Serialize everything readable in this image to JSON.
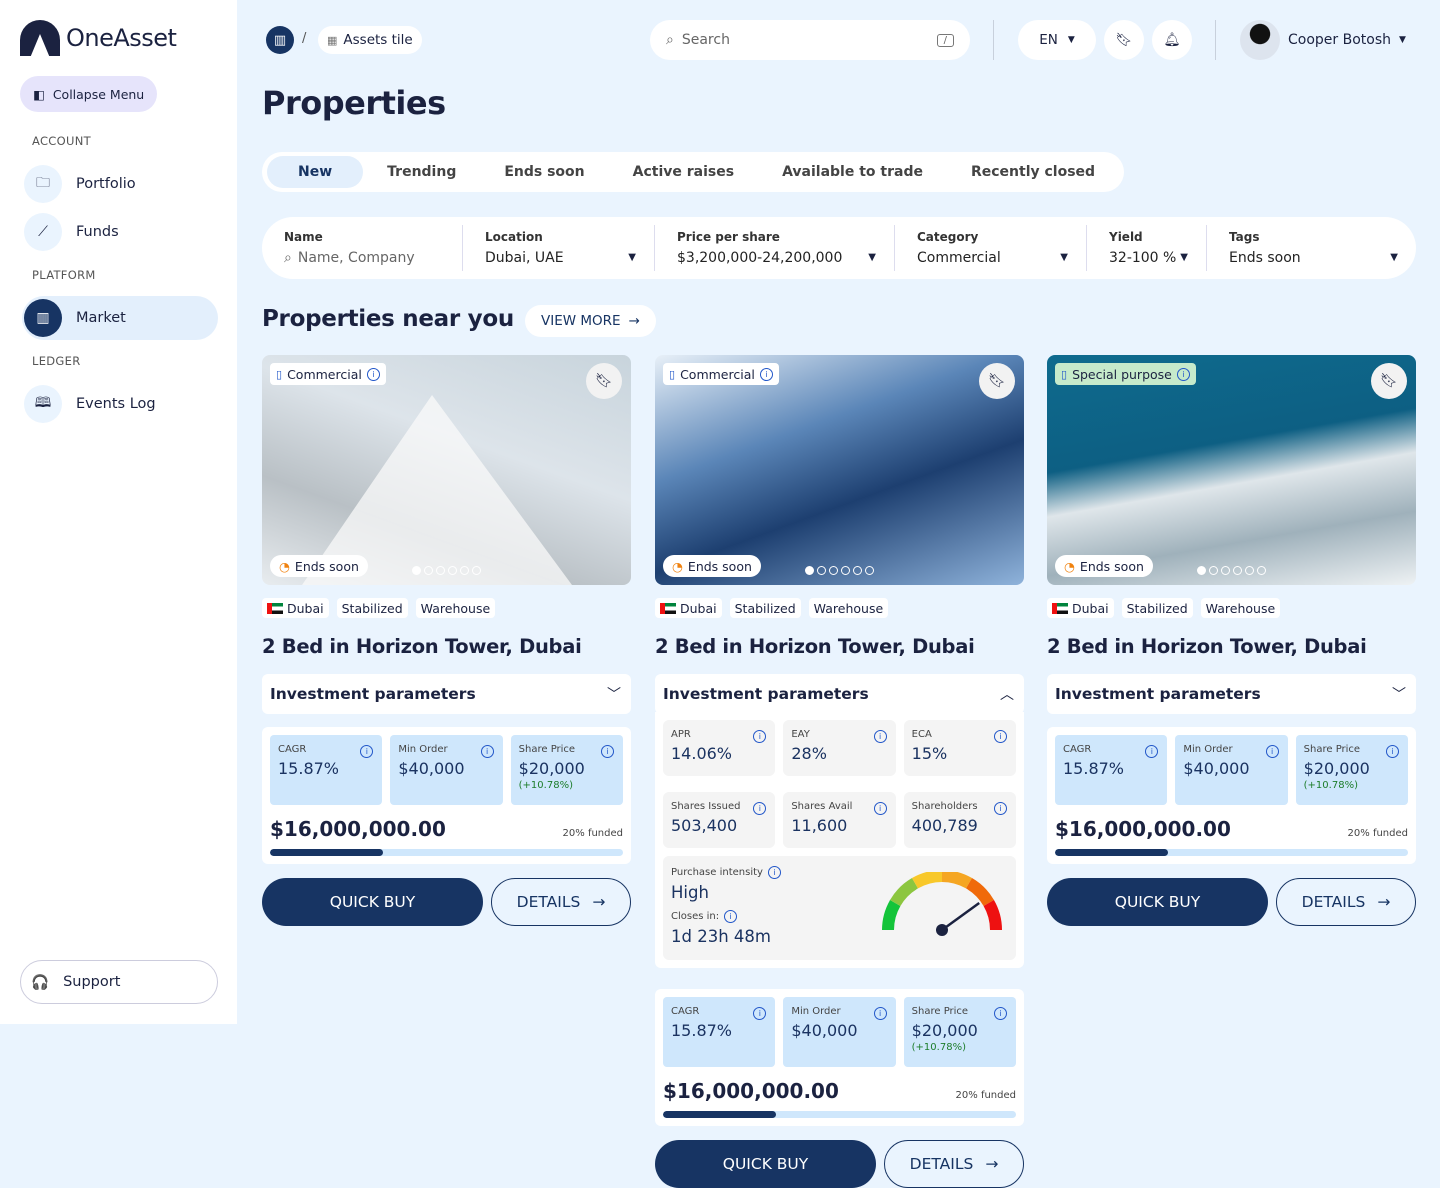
{
  "brand": {
    "name": "OneAsset"
  },
  "sidebar": {
    "collapse_label": "Collapse Menu",
    "sections": {
      "account": "ACCOUNT",
      "platform": "PLATFORM",
      "ledger": "LEDGER"
    },
    "items": [
      {
        "label": "Portfolio",
        "icon": "folder-icon"
      },
      {
        "label": "Funds",
        "icon": "chart-line-icon"
      },
      {
        "label": "Market",
        "icon": "building-icon",
        "active": true
      },
      {
        "label": "Events Log",
        "icon": "book-icon"
      }
    ],
    "support_label": "Support"
  },
  "header": {
    "breadcrumb": {
      "separator": "/",
      "current": "Assets tile"
    },
    "search": {
      "placeholder": "Search",
      "shortcut": "/"
    },
    "language": "EN",
    "user_name": "Cooper Botosh"
  },
  "page_title": "Properties",
  "tabs": [
    {
      "label": "New",
      "active": true
    },
    {
      "label": "Trending"
    },
    {
      "label": "Ends soon"
    },
    {
      "label": "Active raises"
    },
    {
      "label": "Available to trade"
    },
    {
      "label": "Recently closed"
    }
  ],
  "filters": [
    {
      "label": "Name",
      "placeholder": "Name, Company"
    },
    {
      "label": "Location",
      "value": "Dubai, UAE"
    },
    {
      "label": "Price per share",
      "value": "$3,200,000-24,200,000"
    },
    {
      "label": "Category",
      "value": "Commercial"
    },
    {
      "label": "Yield",
      "value": "32-100 %"
    },
    {
      "label": "Tags",
      "value": "Ends soon"
    }
  ],
  "section": {
    "title": "Properties near you",
    "view_more": "VIEW MORE"
  },
  "cards": [
    {
      "category": "Commercial",
      "status": "Ends soon",
      "tags": [
        "Dubai",
        "Stabilized",
        "Warehouse"
      ],
      "title": "2 Bed in Horizon Tower, Dubai",
      "params_label": "Investment parameters",
      "expanded": false,
      "stats": [
        {
          "label": "CAGR",
          "value": "15.87%"
        },
        {
          "label": "Min Order",
          "value": "$40,000"
        },
        {
          "label": "Share Price",
          "value": "$20,000",
          "change": "(+10.78%)"
        }
      ],
      "raise": "$16,000,000.00",
      "funded_label": "20% funded",
      "funded": 0.2,
      "quick_buy": "QUICK BUY",
      "details": "DETAILS",
      "slide": 1,
      "slides": 6
    },
    {
      "category": "Commercial",
      "status": "Ends soon",
      "tags": [
        "Dubai",
        "Stabilized",
        "Warehouse"
      ],
      "title": "2 Bed in Horizon Tower, Dubai",
      "params_label": "Investment parameters",
      "expanded": true,
      "params": [
        {
          "label": "APR",
          "value": "14.06%"
        },
        {
          "label": "EAY",
          "value": "28%"
        },
        {
          "label": "ECA",
          "value": "15%"
        },
        {
          "label": "Shares Issued",
          "value": "503,400"
        },
        {
          "label": "Shares Avail",
          "value": "11,600"
        },
        {
          "label": "Shareholders",
          "value": "400,789"
        }
      ],
      "intensity": {
        "label": "Purchase intensity",
        "value": "High",
        "closes_label": "Closes in:",
        "closes_value": "1d 23h 48m",
        "level": 0.8
      },
      "stats": [
        {
          "label": "CAGR",
          "value": "15.87%"
        },
        {
          "label": "Min Order",
          "value": "$40,000"
        },
        {
          "label": "Share Price",
          "value": "$20,000",
          "change": "(+10.78%)"
        }
      ],
      "raise": "$16,000,000.00",
      "funded_label": "20% funded",
      "funded": 0.2,
      "quick_buy": "QUICK BUY",
      "details": "DETAILS",
      "slide": 1,
      "slides": 6
    },
    {
      "category": "Special purpose",
      "status": "Ends soon",
      "tags": [
        "Dubai",
        "Stabilized",
        "Warehouse"
      ],
      "title": "2 Bed in Horizon Tower, Dubai",
      "params_label": "Investment parameters",
      "expanded": false,
      "stats": [
        {
          "label": "CAGR",
          "value": "15.87%"
        },
        {
          "label": "Min Order",
          "value": "$40,000"
        },
        {
          "label": "Share Price",
          "value": "$20,000",
          "change": "(+10.78%)"
        }
      ],
      "raise": "$16,000,000.00",
      "funded_label": "20% funded",
      "funded": 0.2,
      "quick_buy": "QUICK BUY",
      "details": "DETAILS",
      "slide": 1,
      "slides": 6
    }
  ],
  "colors": {
    "primary": "#173463",
    "background": "#eaf4fe",
    "accent_info": "#2257c9",
    "positive": "#1d7d2b",
    "ends_soon": "#f0820f"
  }
}
